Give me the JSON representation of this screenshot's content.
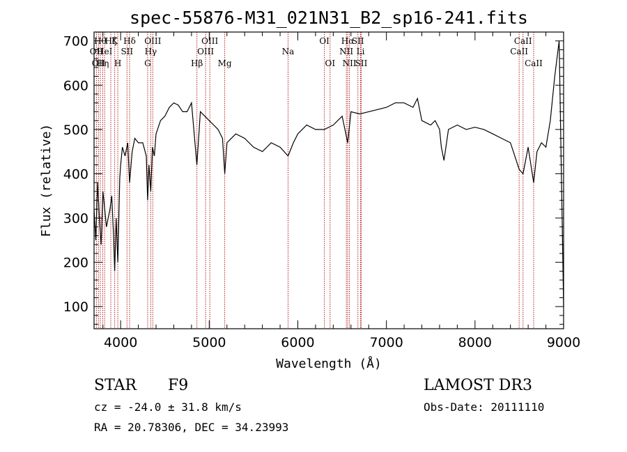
{
  "chart_data": {
    "type": "line",
    "title": "spec-55876-M31_021N31_B2_sp16-241.fits",
    "xlabel": "Wavelength (Å)",
    "ylabel": "Flux (relative)",
    "xlim": [
      3700,
      9000
    ],
    "ylim": [
      50,
      720
    ],
    "x_ticks": [
      4000,
      5000,
      6000,
      7000,
      8000,
      9000
    ],
    "y_ticks": [
      100,
      200,
      300,
      400,
      500,
      600,
      700
    ],
    "grid": false,
    "series": [
      {
        "x": [
          3700,
          3720,
          3740,
          3760,
          3780,
          3800,
          3820,
          3840,
          3860,
          3880,
          3900,
          3920,
          3933,
          3950,
          3968,
          3990,
          4000,
          4020,
          4050,
          4080,
          4101,
          4130,
          4160,
          4200,
          4250,
          4290,
          4305,
          4320,
          4340,
          4360,
          4380,
          4400,
          4450,
          4500,
          4550,
          4600,
          4650,
          4700,
          4750,
          4800,
          4861,
          4900,
          4950,
          5000,
          5050,
          5100,
          5150,
          5175,
          5200,
          5250,
          5300,
          5400,
          5500,
          5600,
          5700,
          5800,
          5890,
          5950,
          6000,
          6100,
          6200,
          6300,
          6400,
          6500,
          6563,
          6600,
          6700,
          6800,
          6900,
          7000,
          7100,
          7200,
          7300,
          7350,
          7400,
          7500,
          7550,
          7600,
          7620,
          7650,
          7700,
          7800,
          7900,
          8000,
          8100,
          8200,
          8300,
          8400,
          8498,
          8542,
          8600,
          8662,
          8700,
          8750,
          8800,
          8850,
          8900,
          8950,
          9000
        ],
        "values": [
          320,
          250,
          380,
          300,
          240,
          360,
          320,
          280,
          300,
          320,
          350,
          260,
          180,
          300,
          200,
          390,
          420,
          460,
          440,
          470,
          380,
          450,
          480,
          470,
          470,
          440,
          340,
          420,
          360,
          460,
          440,
          490,
          520,
          530,
          550,
          560,
          555,
          540,
          540,
          560,
          420,
          540,
          530,
          520,
          510,
          500,
          480,
          400,
          470,
          480,
          490,
          480,
          460,
          450,
          470,
          460,
          440,
          470,
          490,
          510,
          500,
          500,
          510,
          530,
          470,
          540,
          535,
          540,
          545,
          550,
          560,
          560,
          550,
          570,
          520,
          510,
          520,
          500,
          460,
          430,
          500,
          510,
          500,
          505,
          500,
          490,
          480,
          470,
          410,
          400,
          460,
          380,
          450,
          470,
          460,
          520,
          620,
          700,
          100
        ]
      }
    ],
    "line_markers": [
      {
        "x": 3727,
        "label": "OII",
        "row": 1
      },
      {
        "x": 3750,
        "label": "OII",
        "row": 2
      },
      {
        "x": 3771,
        "label": "Hθ",
        "row": 0
      },
      {
        "x": 3798,
        "label": "Hη",
        "row": 2
      },
      {
        "x": 3820,
        "label": "HeI",
        "row": 1
      },
      {
        "x": 3889,
        "label": "Hζ",
        "row": 0
      },
      {
        "x": 3933,
        "label": "K",
        "row": 0
      },
      {
        "x": 3968,
        "label": "H",
        "row": 2
      },
      {
        "x": 4072,
        "label": "SII",
        "row": 1
      },
      {
        "x": 4101,
        "label": "Hδ",
        "row": 0
      },
      {
        "x": 4305,
        "label": "G",
        "row": 2
      },
      {
        "x": 4340,
        "label": "Hγ",
        "row": 1
      },
      {
        "x": 4363,
        "label": "OIII",
        "row": 0
      },
      {
        "x": 4861,
        "label": "Hβ",
        "row": 2
      },
      {
        "x": 4959,
        "label": "OIII",
        "row": 1
      },
      {
        "x": 5007,
        "label": "OIII",
        "row": 0
      },
      {
        "x": 5175,
        "label": "Mg",
        "row": 2
      },
      {
        "x": 5890,
        "label": "Na",
        "row": 1
      },
      {
        "x": 6300,
        "label": "OI",
        "row": 0
      },
      {
        "x": 6364,
        "label": "OI",
        "row": 2
      },
      {
        "x": 6548,
        "label": "NII",
        "row": 1
      },
      {
        "x": 6563,
        "label": "Hα",
        "row": 0
      },
      {
        "x": 6583,
        "label": "NII",
        "row": 2
      },
      {
        "x": 6678,
        "label": "SII",
        "row": 0
      },
      {
        "x": 6708,
        "label": "Li",
        "row": 1
      },
      {
        "x": 6716,
        "label": "SII",
        "row": 2
      },
      {
        "x": 8498,
        "label": "CaII",
        "row": 1
      },
      {
        "x": 8542,
        "label": "CaII",
        "row": 0
      },
      {
        "x": 8662,
        "label": "CaII",
        "row": 2
      }
    ],
    "colors": {
      "spectrum": "#000000",
      "markers": "#b22222",
      "axes": "#000000"
    }
  },
  "footer": {
    "class_label": "STAR",
    "subclass": "F9",
    "survey": "LAMOST DR3",
    "cz": "cz = -24.0 ± 31.8 km/s",
    "obs_date": "Obs-Date: 20111110",
    "coords": "RA =  20.78306, DEC =  34.23993"
  }
}
